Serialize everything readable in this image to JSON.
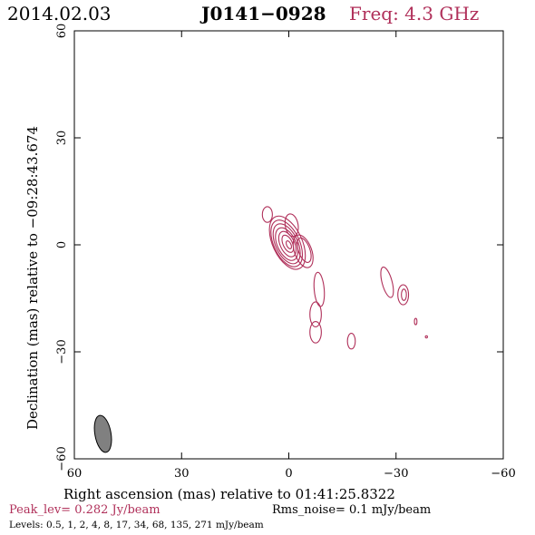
{
  "header": {
    "date": "2014.02.03",
    "source": "J0141−0928",
    "freq": "Freq: 4.3 GHz"
  },
  "colors": {
    "accent": "#b0305a",
    "contour": "#b0305a",
    "beam": "#808080"
  },
  "chart_data": {
    "type": "contour",
    "xlabel": "Right ascension (mas) relative to 01:41:25.8322",
    "ylabel": "Declination (mas) relative to −09:28:43.674",
    "xlim": [
      60,
      -60
    ],
    "ylim": [
      -60,
      60
    ],
    "x_ticks": [
      60,
      30,
      0,
      -30,
      -60
    ],
    "x_tick_labels": [
      "60",
      "30",
      "0",
      "−30",
      "−60"
    ],
    "y_ticks": [
      -60,
      -30,
      0,
      30,
      60
    ],
    "y_tick_labels": [
      "−60",
      "−30",
      "0",
      "30",
      "60"
    ],
    "beam": {
      "x": 52,
      "y": -53,
      "major": 10.5,
      "minor": 4.5,
      "pa_deg": -10
    },
    "peak_label": "Peak_lev=  0.282 Jy/beam",
    "rms_label": "Rms_noise=  0.1 mJy/beam",
    "levels_label": "Levels: 0.5,   1,   2,   4,   8,  17,  34,  68, 135, 271 mJy/beam",
    "contours": [
      {
        "x": 0,
        "y": 0,
        "rx": 0.6,
        "ry": 1.2,
        "angle": -25
      },
      {
        "x": 0.3,
        "y": 0.3,
        "rx": 1.3,
        "ry": 2.6,
        "angle": -25
      },
      {
        "x": 0.4,
        "y": 0.2,
        "rx": 2.0,
        "ry": 3.8,
        "angle": -25
      },
      {
        "x": 0.6,
        "y": 0.2,
        "rx": 2.6,
        "ry": 4.9,
        "angle": -25
      },
      {
        "x": 0.6,
        "y": 0.3,
        "rx": 3.1,
        "ry": 6.0,
        "angle": -25
      },
      {
        "x": 0.6,
        "y": 0.4,
        "rx": 3.6,
        "ry": 7.0,
        "angle": -25
      },
      {
        "x": 0.4,
        "y": 0.6,
        "rx": 4.1,
        "ry": 8.0,
        "angle": -25
      },
      {
        "x": -4.3,
        "y": -1.5,
        "rx": 1.6,
        "ry": 3.6,
        "angle": -20
      },
      {
        "x": -4.0,
        "y": -1.8,
        "rx": 2.4,
        "ry": 4.8,
        "angle": -20
      },
      {
        "x": -0.8,
        "y": 5.5,
        "rx": 1.8,
        "ry": 3.2,
        "angle": -10
      },
      {
        "x": 6.0,
        "y": 8.5,
        "rx": 1.4,
        "ry": 2.2,
        "angle": 0
      },
      {
        "x": -8.5,
        "y": -12.5,
        "rx": 1.4,
        "ry": 4.8,
        "angle": -5
      },
      {
        "x": -7.5,
        "y": -19.5,
        "rx": 1.6,
        "ry": 3.5,
        "angle": 0
      },
      {
        "x": -7.5,
        "y": -24.5,
        "rx": 1.6,
        "ry": 3.0,
        "angle": 0
      },
      {
        "x": -17.5,
        "y": -27,
        "rx": 1.1,
        "ry": 2.2,
        "angle": 0
      },
      {
        "x": -27.5,
        "y": -10.5,
        "rx": 1.4,
        "ry": 4.4,
        "angle": -15
      },
      {
        "x": -32,
        "y": -14,
        "rx": 1.5,
        "ry": 2.8,
        "angle": 0
      },
      {
        "x": -32.2,
        "y": -14,
        "rx": 0.7,
        "ry": 1.6,
        "angle": 0
      },
      {
        "x": -35.5,
        "y": -21.5,
        "rx": 0.35,
        "ry": 0.9,
        "angle": 0
      },
      {
        "x": -38.5,
        "y": -25.8,
        "rx": 0.3,
        "ry": 0.3,
        "angle": 0
      }
    ]
  }
}
